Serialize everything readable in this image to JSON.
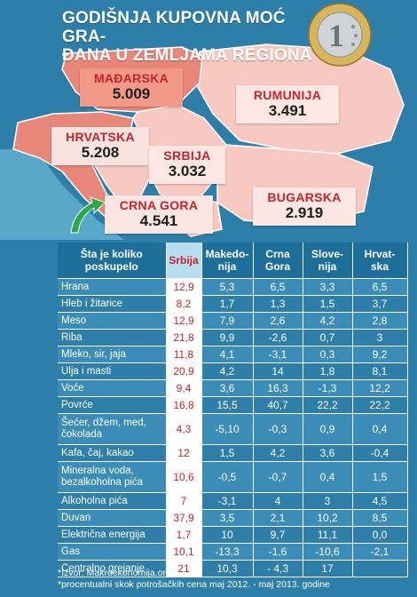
{
  "title": {
    "line1": "GODIŠNJA KUPOVNA MOĆ GRA-",
    "line2": "ĐANA U ZEMLJAMA REGIONA"
  },
  "coin": {
    "icon": "euro-coin-icon",
    "face_value": "1"
  },
  "colors": {
    "background": "#2d7fa9",
    "header_dark": "#1d6e98",
    "label_red": "#c8232c",
    "land_bright": "#e88779",
    "land_pale": "#f7c9c1",
    "sea": "#5aa8c9"
  },
  "countries": [
    {
      "name": "MAĐARSKA",
      "value": "5.009"
    },
    {
      "name": "RUMUNIJA",
      "value": "3.491"
    },
    {
      "name": "HRVATSKA",
      "value": "5.208"
    },
    {
      "name": "SRBIJA",
      "value": "3.032"
    },
    {
      "name": "CRNA GORA",
      "value": "4.541"
    },
    {
      "name": "BUGARSKA",
      "value": "2.919"
    }
  ],
  "table": {
    "headers": [
      "Šta je koliko\nposkupelo",
      "Srbija",
      "Makedo-\nnija",
      "Crna\nGora",
      "Slove-\nnija",
      "Hrvat-\nska"
    ],
    "rows": [
      [
        "Hrana",
        "12,9",
        "5,3",
        "6,5",
        "3,3",
        "6,5"
      ],
      [
        "Hleb i žitarice",
        "8,2",
        "1,7",
        "1,3",
        "1,5",
        "3,7"
      ],
      [
        "Meso",
        "12,9",
        "7,9",
        "2,6",
        "4,2",
        "2,8"
      ],
      [
        "Riba",
        "21,8",
        "9,9",
        "-2,6",
        "0,7",
        "3"
      ],
      [
        "Mleko, sir, jaja",
        "11,8",
        "4,1",
        "-3,1",
        "0,3",
        "9,2"
      ],
      [
        "Ulja i masti",
        "20,9",
        "4,2",
        "14",
        "1,8",
        "8,1"
      ],
      [
        "Voće",
        "9,4",
        "3,6",
        "16,3",
        "-1,3",
        "12,2"
      ],
      [
        "Povrće",
        "16,8",
        "15,5",
        "40,7",
        "22,2",
        "22,2"
      ],
      [
        "Šećer, džem, med,\nčokolada",
        "4,3",
        "-5,10",
        "-0,3",
        "0,9",
        "0,4"
      ],
      [
        "Kafa, čaj, kakao",
        "12",
        "1,5",
        "4,2",
        "3,6",
        "-0,4"
      ],
      [
        "Mineralna voda,\nbezalkoholna pića",
        "10,6",
        "-0,5",
        "-0,7",
        "0,4",
        "1,5"
      ],
      [
        "Alkoholna pića",
        "7",
        "-3,1",
        "4",
        "3",
        "4,5"
      ],
      [
        "Duvan",
        "37,9",
        "3,5",
        "2,1",
        "10,2",
        "8,5"
      ],
      [
        "Električna energija",
        "1,7",
        "10",
        "9,7",
        "11,1",
        "0,0"
      ],
      [
        "Gas",
        "10,1",
        "-13,3",
        "-1,6",
        "-10,6",
        "-2,1"
      ],
      [
        "Centralno grejanje",
        "21",
        "10,3",
        "- 4,3",
        "17",
        ""
      ]
    ]
  },
  "footer": {
    "line1": "*Izvor: Makroekonomija.org",
    "line2": "*procentualni skok potrošačkih cena maj 2012. - maj 2013. godine"
  }
}
